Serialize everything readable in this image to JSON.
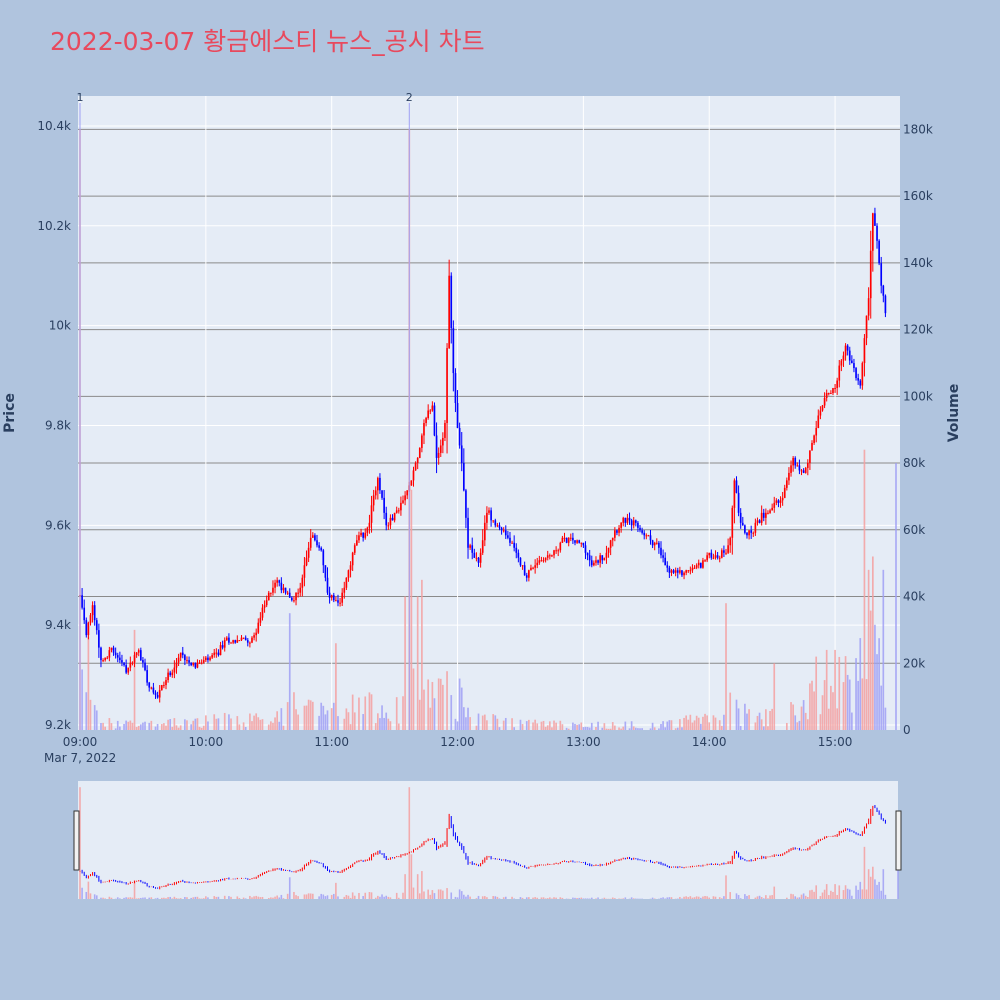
{
  "chart_data": {
    "type": "candlestick",
    "title": "2022-03-07 황금에스티 뉴스_공시 차트",
    "colors": {
      "background": "#b0c4de",
      "plot_bg": "#e5ecf6",
      "up": "#ff0000",
      "down": "#0000ff",
      "up_volume": "#f4a0a0",
      "down_volume": "#a0a0f4",
      "title": "#e8495d"
    },
    "x_axis": {
      "ticks": [
        "09:00",
        "10:00",
        "11:00",
        "12:00",
        "13:00",
        "14:00",
        "15:00"
      ],
      "date_label": "Mar 7, 2022",
      "range": [
        "09:00",
        "15:30"
      ]
    },
    "price_axis": {
      "label": "Price",
      "ticks": [
        "9.2k",
        "9.4k",
        "9.6k",
        "9.8k",
        "10k",
        "10.2k",
        "10.4k"
      ],
      "range": [
        9190,
        10460
      ]
    },
    "volume_axis": {
      "label": "Volume",
      "ticks": [
        "0",
        "20k",
        "40k",
        "60k",
        "80k",
        "100k",
        "120k",
        "140k",
        "160k",
        "180k"
      ],
      "range": [
        0,
        190000
      ]
    },
    "markers": [
      {
        "label": "1",
        "time": "09:00"
      },
      {
        "label": "2",
        "time": "11:37"
      }
    ],
    "price_anchors": [
      [
        "09:00",
        9460
      ],
      [
        "09:03",
        9380
      ],
      [
        "09:06",
        9440
      ],
      [
        "09:10",
        9330
      ],
      [
        "09:15",
        9350
      ],
      [
        "09:22",
        9310
      ],
      [
        "09:28",
        9350
      ],
      [
        "09:33",
        9280
      ],
      [
        "09:37",
        9260
      ],
      [
        "09:42",
        9300
      ],
      [
        "09:48",
        9340
      ],
      [
        "09:55",
        9320
      ],
      [
        "10:00",
        9330
      ],
      [
        "10:05",
        9340
      ],
      [
        "10:10",
        9370
      ],
      [
        "10:15",
        9370
      ],
      [
        "10:22",
        9370
      ],
      [
        "10:28",
        9440
      ],
      [
        "10:33",
        9490
      ],
      [
        "10:38",
        9470
      ],
      [
        "10:42",
        9450
      ],
      [
        "10:45",
        9480
      ],
      [
        "10:50",
        9580
      ],
      [
        "10:55",
        9550
      ],
      [
        "10:58",
        9460
      ],
      [
        "11:04",
        9440
      ],
      [
        "11:08",
        9510
      ],
      [
        "11:12",
        9570
      ],
      [
        "11:17",
        9590
      ],
      [
        "11:22",
        9700
      ],
      [
        "11:26",
        9600
      ],
      [
        "11:30",
        9620
      ],
      [
        "11:35",
        9660
      ],
      [
        "11:40",
        9720
      ],
      [
        "11:45",
        9820
      ],
      [
        "11:48",
        9840
      ],
      [
        "11:50",
        9730
      ],
      [
        "11:54",
        9800
      ],
      [
        "11:56",
        10100
      ],
      [
        "11:58",
        9900
      ],
      [
        "12:00",
        9800
      ],
      [
        "12:02",
        9720
      ],
      [
        "12:05",
        9560
      ],
      [
        "12:10",
        9520
      ],
      [
        "12:14",
        9630
      ],
      [
        "12:18",
        9600
      ],
      [
        "12:22",
        9590
      ],
      [
        "12:28",
        9540
      ],
      [
        "12:33",
        9500
      ],
      [
        "12:38",
        9530
      ],
      [
        "12:45",
        9540
      ],
      [
        "12:50",
        9570
      ],
      [
        "12:55",
        9570
      ],
      [
        "13:00",
        9560
      ],
      [
        "13:04",
        9520
      ],
      [
        "13:10",
        9540
      ],
      [
        "13:15",
        9590
      ],
      [
        "13:20",
        9610
      ],
      [
        "13:25",
        9600
      ],
      [
        "13:30",
        9580
      ],
      [
        "13:35",
        9560
      ],
      [
        "13:40",
        9510
      ],
      [
        "13:45",
        9500
      ],
      [
        "13:50",
        9510
      ],
      [
        "13:55",
        9520
      ],
      [
        "14:00",
        9540
      ],
      [
        "14:05",
        9540
      ],
      [
        "14:08",
        9550
      ],
      [
        "14:10",
        9580
      ],
      [
        "14:12",
        9690
      ],
      [
        "14:15",
        9600
      ],
      [
        "14:20",
        9580
      ],
      [
        "14:25",
        9620
      ],
      [
        "14:30",
        9640
      ],
      [
        "14:35",
        9660
      ],
      [
        "14:40",
        9730
      ],
      [
        "14:45",
        9700
      ],
      [
        "14:50",
        9780
      ],
      [
        "14:55",
        9860
      ],
      [
        "15:00",
        9880
      ],
      [
        "15:05",
        9960
      ],
      [
        "15:08",
        9920
      ],
      [
        "15:12",
        9880
      ],
      [
        "15:16",
        10060
      ],
      [
        "15:18",
        10230
      ],
      [
        "15:20",
        10170
      ],
      [
        "15:22",
        10080
      ],
      [
        "15:24",
        10030
      ]
    ],
    "volume_anchors": [
      [
        "09:00",
        13000
      ],
      [
        "09:04",
        6000
      ],
      [
        "09:10",
        2500
      ],
      [
        "09:30",
        1500
      ],
      [
        "10:00",
        2500
      ],
      [
        "10:35",
        4000
      ],
      [
        "10:42",
        7000
      ],
      [
        "10:52",
        5000
      ],
      [
        "11:00",
        4500
      ],
      [
        "11:20",
        8000
      ],
      [
        "11:30",
        7000
      ],
      [
        "11:45",
        15000
      ],
      [
        "11:50",
        9000
      ],
      [
        "11:55",
        14000
      ],
      [
        "12:05",
        5000
      ],
      [
        "12:15",
        3000
      ],
      [
        "12:30",
        2000
      ],
      [
        "13:00",
        1500
      ],
      [
        "13:30",
        1500
      ],
      [
        "14:00",
        3000
      ],
      [
        "14:10",
        8000
      ],
      [
        "14:20",
        3000
      ],
      [
        "14:40",
        5000
      ],
      [
        "14:55",
        11000
      ],
      [
        "15:10",
        14000
      ],
      [
        "15:18",
        25000
      ],
      [
        "15:24",
        15000
      ]
    ],
    "volume_spikes": [
      [
        "09:00",
        180000
      ],
      [
        "09:04",
        28000
      ],
      [
        "09:26",
        30000
      ],
      [
        "10:40",
        35000
      ],
      [
        "11:02",
        26000
      ],
      [
        "11:35",
        40000
      ],
      [
        "11:37",
        180000
      ],
      [
        "11:38",
        72000
      ],
      [
        "11:41",
        40000
      ],
      [
        "11:43",
        45000
      ],
      [
        "14:08",
        38000
      ],
      [
        "14:31",
        20000
      ],
      [
        "14:51",
        22000
      ],
      [
        "14:56",
        24000
      ],
      [
        "15:00",
        24000
      ],
      [
        "15:14",
        84000
      ],
      [
        "15:16",
        48000
      ],
      [
        "15:18",
        52000
      ],
      [
        "15:23",
        48000
      ]
    ],
    "last_volume": [
      "15:30",
      80000
    ],
    "rangeslider": true
  }
}
